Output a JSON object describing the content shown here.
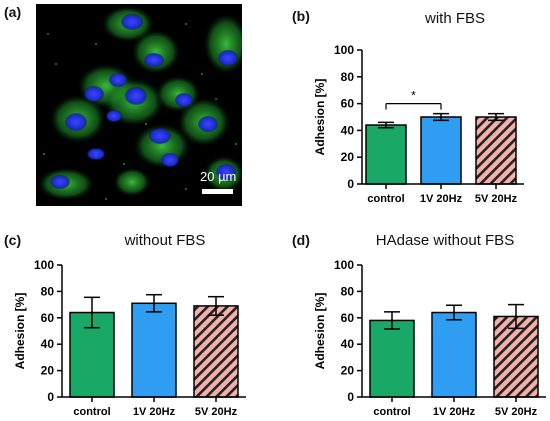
{
  "panels": {
    "a": {
      "label": "(a)",
      "scale_bar_label": "20 µm"
    },
    "b": {
      "label": "(b)",
      "title": "with FBS"
    },
    "c": {
      "label": "(c)",
      "title": "without FBS"
    },
    "d": {
      "label": "(d)",
      "title": "HAdase without FBS"
    }
  },
  "colors": {
    "control": "#1aa866",
    "1v": "#2f9ef2",
    "5v_fill": "#f4b0aa",
    "5v_hatch": "#222222"
  },
  "chart_data": [
    {
      "panel": "b",
      "type": "bar",
      "title": "with FBS",
      "ylabel": "Adhesion [%]",
      "ylim": [
        0,
        100
      ],
      "yticks": [
        0,
        20,
        40,
        60,
        80,
        100
      ],
      "categories": [
        "control",
        "1V 20Hz",
        "5V 20Hz"
      ],
      "values": [
        44,
        50,
        50
      ],
      "errors": [
        2,
        2.5,
        2.5
      ],
      "significance": {
        "from": "control",
        "to": "1V 20Hz",
        "label": "*"
      }
    },
    {
      "panel": "c",
      "type": "bar",
      "title": "without FBS",
      "ylabel": "Adhesion [%]",
      "ylim": [
        0,
        100
      ],
      "yticks": [
        0,
        20,
        40,
        60,
        80,
        100
      ],
      "categories": [
        "control",
        "1V 20Hz",
        "5V 20Hz"
      ],
      "values": [
        64,
        71,
        69
      ],
      "errors": [
        11.5,
        6.5,
        7
      ]
    },
    {
      "panel": "d",
      "type": "bar",
      "title": "HAdase without FBS",
      "ylabel": "Adhesion [%]",
      "ylim": [
        0,
        100
      ],
      "yticks": [
        0,
        20,
        40,
        60,
        80,
        100
      ],
      "categories": [
        "control",
        "1V 20Hz",
        "5V 20Hz"
      ],
      "values": [
        58,
        64,
        61
      ],
      "errors": [
        6.5,
        5.5,
        9
      ]
    }
  ]
}
